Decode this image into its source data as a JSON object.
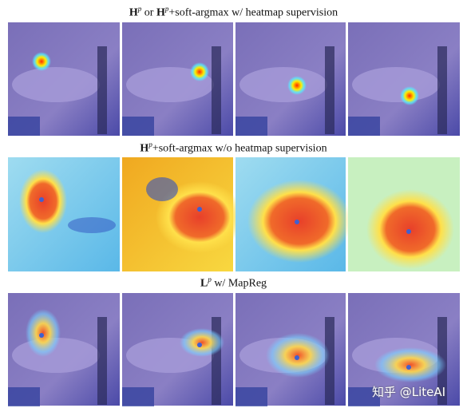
{
  "figure": {
    "rows": [
      {
        "title": [
          "H",
          "p",
          " or ",
          "H",
          "p",
          "+soft-argmax w/ heatmap supervision"
        ]
      },
      {
        "title": [
          "H",
          "p",
          "+soft-argmax w/o heatmap supervision"
        ]
      },
      {
        "title": [
          "L",
          "p",
          " w/ MapReg"
        ]
      }
    ],
    "watermark": "知乎 @LiteAI"
  }
}
